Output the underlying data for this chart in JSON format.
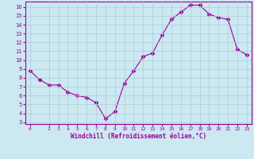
{
  "x": [
    0,
    1,
    2,
    3,
    4,
    5,
    6,
    7,
    8,
    9,
    10,
    11,
    12,
    13,
    14,
    15,
    16,
    17,
    18,
    19,
    20,
    21,
    22,
    23
  ],
  "y": [
    8.8,
    7.8,
    7.2,
    7.2,
    6.4,
    6.0,
    5.8,
    5.2,
    3.4,
    4.2,
    7.4,
    8.8,
    10.4,
    10.8,
    12.8,
    14.6,
    15.4,
    16.2,
    16.2,
    15.2,
    14.8,
    14.6,
    11.2,
    10.6
  ],
  "line_color": "#990099",
  "marker": "D",
  "marker_size": 2.5,
  "background_color": "#cce8f0",
  "grid_color": "#aaccd8",
  "xlabel": "Windchill (Refroidissement éolien,°C)",
  "xlabel_color": "#990099",
  "tick_color": "#990099",
  "ylim": [
    2.8,
    16.6
  ],
  "xlim": [
    -0.5,
    23.5
  ],
  "yticks": [
    3,
    4,
    5,
    6,
    7,
    8,
    9,
    10,
    11,
    12,
    13,
    14,
    15,
    16
  ],
  "xticks": [
    0,
    2,
    3,
    4,
    5,
    6,
    7,
    8,
    9,
    10,
    11,
    12,
    13,
    14,
    15,
    16,
    17,
    18,
    19,
    20,
    21,
    22,
    23
  ]
}
